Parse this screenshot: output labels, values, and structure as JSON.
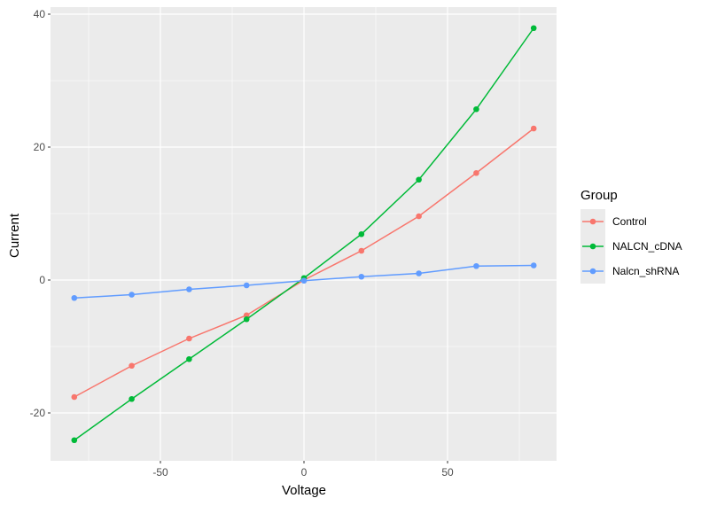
{
  "chart_data": {
    "type": "line",
    "title": "",
    "xlabel": "Voltage",
    "ylabel": "Current",
    "x": [
      -80,
      -60,
      -40,
      -20,
      0,
      20,
      40,
      60,
      80
    ],
    "xlim": [
      -88,
      88
    ],
    "ylim": [
      -27,
      41.3
    ],
    "x_ticks": [
      -50,
      0,
      50
    ],
    "y_ticks": [
      -20,
      0,
      20,
      40
    ],
    "grid": true,
    "legend_position": "right",
    "legend_title": "Group",
    "series": [
      {
        "name": "Control",
        "color": "#F8766D",
        "values": [
          -17.6,
          -12.9,
          -8.8,
          -5.3,
          0.0,
          4.4,
          9.6,
          16.1,
          22.8
        ]
      },
      {
        "name": "NALCN_cDNA",
        "color": "#00BA38",
        "values": [
          -24.1,
          -17.9,
          -11.9,
          -5.9,
          0.3,
          6.9,
          15.1,
          25.7,
          37.9
        ]
      },
      {
        "name": "Nalcn_shRNA",
        "color": "#619CFF",
        "values": [
          -2.7,
          -2.2,
          -1.4,
          -0.8,
          -0.1,
          0.5,
          1.0,
          2.1,
          2.2
        ]
      }
    ]
  },
  "legend": {
    "title": "Group",
    "items": [
      "Control",
      "NALCN_cDNA",
      "Nalcn_shRNA"
    ]
  },
  "axes": {
    "xlabel": "Voltage",
    "ylabel": "Current"
  }
}
